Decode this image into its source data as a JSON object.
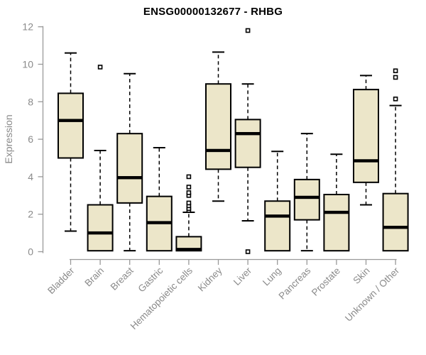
{
  "chart_data": {
    "type": "box",
    "title": "ENSG00000132677 - RHBG",
    "ylabel": "Expression",
    "xlabel": "",
    "ylim": [
      0,
      12
    ],
    "yticks": [
      0,
      2,
      4,
      6,
      8,
      10,
      12
    ],
    "grid": false,
    "legend": "none",
    "categories": [
      "Bladder",
      "Brain",
      "Breast",
      "Gastric",
      "Hematopoietic cells",
      "Kidney",
      "Liver",
      "Lung",
      "Pancreas",
      "Prostate",
      "Skin",
      "Unknown / Other"
    ],
    "boxes": [
      {
        "category": "Bladder",
        "whisker_low": 1.1,
        "q1": 5.0,
        "median": 7.0,
        "q3": 8.45,
        "whisker_high": 10.6,
        "outliers": []
      },
      {
        "category": "Brain",
        "whisker_low": 0.05,
        "q1": 0.05,
        "median": 1.0,
        "q3": 2.5,
        "whisker_high": 5.4,
        "outliers": [
          9.85
        ]
      },
      {
        "category": "Breast",
        "whisker_low": 0.05,
        "q1": 2.6,
        "median": 3.95,
        "q3": 6.3,
        "whisker_high": 9.5,
        "outliers": []
      },
      {
        "category": "Gastric",
        "whisker_low": 0.05,
        "q1": 0.05,
        "median": 1.55,
        "q3": 2.95,
        "whisker_high": 5.55,
        "outliers": []
      },
      {
        "category": "Hematopoietic cells",
        "whisker_low": 0.05,
        "q1": 0.05,
        "median": 0.12,
        "q3": 0.8,
        "whisker_high": 2.1,
        "outliers": [
          2.2,
          2.3,
          2.45,
          2.6,
          3.0,
          3.15,
          3.45,
          4.0
        ]
      },
      {
        "category": "Kidney",
        "whisker_low": 2.7,
        "q1": 4.4,
        "median": 5.4,
        "q3": 8.95,
        "whisker_high": 10.65,
        "outliers": []
      },
      {
        "category": "Liver",
        "whisker_low": 1.65,
        "q1": 4.5,
        "median": 6.3,
        "q3": 7.05,
        "whisker_high": 8.95,
        "outliers": [
          11.8,
          0.0
        ]
      },
      {
        "category": "Lung",
        "whisker_low": 0.05,
        "q1": 0.05,
        "median": 1.9,
        "q3": 2.7,
        "whisker_high": 5.35,
        "outliers": []
      },
      {
        "category": "Pancreas",
        "whisker_low": 0.05,
        "q1": 1.7,
        "median": 2.9,
        "q3": 3.85,
        "whisker_high": 6.3,
        "outliers": []
      },
      {
        "category": "Prostate",
        "whisker_low": 0.05,
        "q1": 0.05,
        "median": 2.1,
        "q3": 3.05,
        "whisker_high": 5.2,
        "outliers": []
      },
      {
        "category": "Skin",
        "whisker_low": 2.5,
        "q1": 3.7,
        "median": 4.85,
        "q3": 8.65,
        "whisker_high": 9.4,
        "outliers": []
      },
      {
        "category": "Unknown / Other",
        "whisker_low": 0.05,
        "q1": 0.05,
        "median": 1.3,
        "q3": 3.1,
        "whisker_high": 7.8,
        "outliers": [
          8.15,
          9.3,
          9.65
        ]
      }
    ],
    "colors": {
      "box_fill": "#ece6c9",
      "box_border": "#000000",
      "whisker": "#000000",
      "median": "#000000",
      "outlier_fill": "#ffffff",
      "axis_line": "#999999",
      "axis_text": "#8a8a8a",
      "title_text": "#000000"
    }
  }
}
